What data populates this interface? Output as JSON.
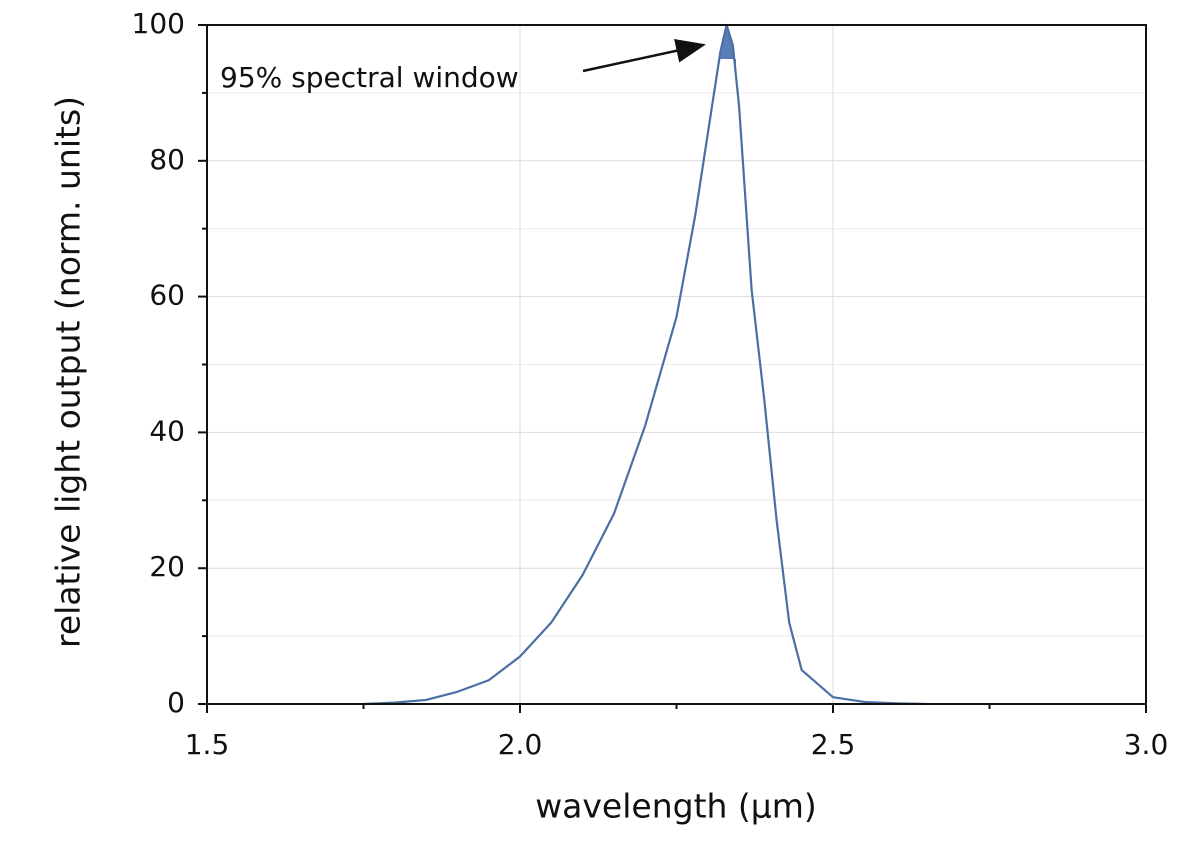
{
  "chart_data": {
    "type": "line",
    "xlabel": "wavelength (µm)",
    "ylabel": "relative light output (norm. units)",
    "annotation": "95% spectral window",
    "x": [
      1.75,
      1.8,
      1.85,
      1.9,
      1.95,
      2.0,
      2.05,
      2.1,
      2.15,
      2.2,
      2.25,
      2.28,
      2.3,
      2.32,
      2.33,
      2.34,
      2.35,
      2.37,
      2.39,
      2.41,
      2.43,
      2.45,
      2.5,
      2.55,
      2.6,
      2.65
    ],
    "series": [
      {
        "color": "#4a6fa5",
        "values": [
          0,
          0.2,
          0.6,
          1.8,
          3.5,
          7,
          12,
          19,
          28,
          41,
          57,
          72,
          84,
          96,
          100,
          97,
          88,
          61,
          45,
          27,
          12,
          5,
          1,
          0.3,
          0.1,
          0
        ]
      }
    ],
    "window_level": 95,
    "window_x": [
      2.318,
      2.345
    ],
    "window_color": "#5b7db5",
    "xlim": [
      1.5,
      3.0
    ],
    "ylim": [
      0,
      100
    ],
    "xticks": [
      1.5,
      {
        "value": 2.0,
        "label": "2.0"
      },
      2.5,
      {
        "value": 3.0,
        "label": "3.0"
      }
    ],
    "yticks": [
      0,
      20,
      40,
      60,
      80,
      100
    ],
    "x_minor_ticks": [
      1.75,
      2.25,
      2.75
    ],
    "y_minor_ticks": [
      10,
      30,
      50,
      70,
      90
    ],
    "grid": true
  }
}
